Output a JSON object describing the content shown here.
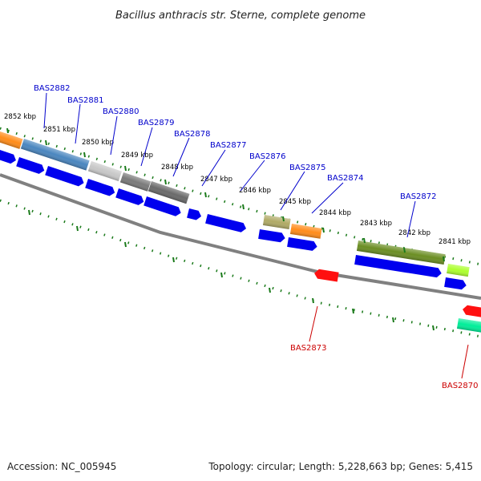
{
  "title": "Bacillus anthracis str. Sterne, complete genome",
  "footer": {
    "accession": "Accession: NC_005945",
    "summary": "Topology: circular; Length: 5,228,663 bp; Genes: 5,415"
  },
  "colors": {
    "label_forward": "#0000cc",
    "label_reverse": "#cc0000",
    "tick": "#1a7a1a",
    "backbone": "#808080",
    "cds": "#0000ee"
  },
  "ruler_ticks": [
    "2852 kbp",
    "2851 kbp",
    "2850 kbp",
    "2849 kbp",
    "2848 kbp",
    "2847 kbp",
    "2846 kbp",
    "2845 kbp",
    "2844 kbp",
    "2843 kbp",
    "2842 kbp",
    "2841 kbp"
  ],
  "gene_labels_forward": [
    "BAS2882",
    "BAS2881",
    "BAS2880",
    "BAS2879",
    "BAS2878",
    "BAS2877",
    "BAS2876",
    "BAS2875",
    "BAS2874",
    "BAS2872"
  ],
  "gene_labels_reverse": [
    "BAS2873",
    "BAS2870"
  ]
}
